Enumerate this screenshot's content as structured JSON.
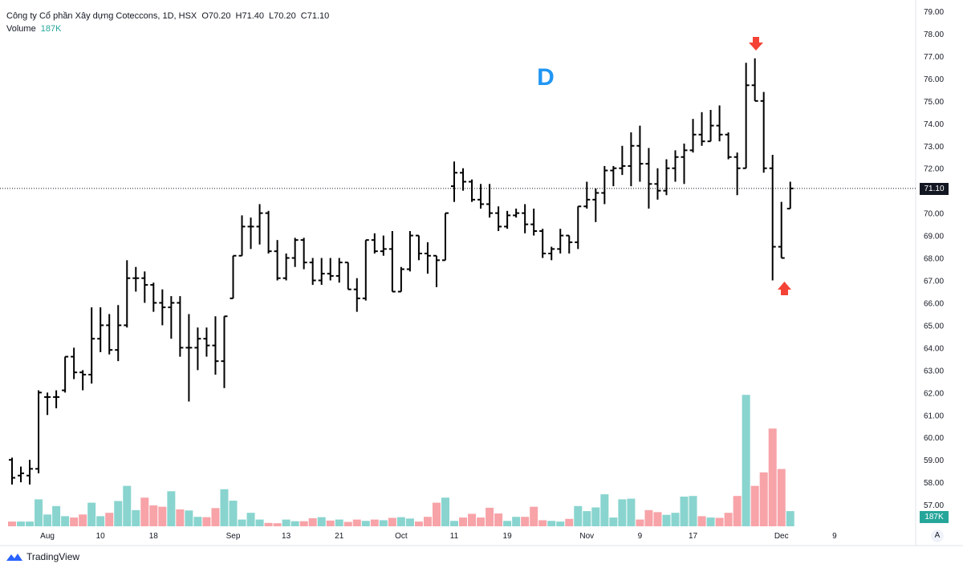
{
  "header": {
    "symbol": "Công ty Cổ phần Xây dựng Coteccons, 1D, HSX",
    "o_label": "O",
    "o_value": "70.20",
    "h_label": "H",
    "h_value": "71.40",
    "l_label": "L",
    "l_value": "70.20",
    "c_label": "C",
    "c_value": "71.10",
    "volume_label": "Volume",
    "volume_value": "187K"
  },
  "annotation": {
    "letter": "D",
    "color": "#2196f3",
    "arrow_color": "#f44336"
  },
  "branding": {
    "logo_text": "TradingView"
  },
  "axis_button": "A",
  "last_price_label": "71.10",
  "last_volume_label": "187K",
  "colors": {
    "bar": "#000000",
    "vol_up": "#89d4cf",
    "vol_down": "#f7a3a8",
    "vol_tag": "#26a69a",
    "price_tag": "#131722"
  },
  "chart_data": {
    "type": "ohlc",
    "title": "",
    "y_ticks": [
      "57.00",
      "58.00",
      "59.00",
      "60.00",
      "61.00",
      "62.00",
      "63.00",
      "64.00",
      "65.00",
      "66.00",
      "67.00",
      "68.00",
      "69.00",
      "70.00",
      "71.00",
      "72.00",
      "73.00",
      "74.00",
      "75.00",
      "76.00",
      "77.00",
      "78.00",
      "79.00"
    ],
    "ylim": [
      56.4,
      79.3
    ],
    "x_ticks": [
      {
        "label": "Aug",
        "bar": 4
      },
      {
        "label": "10",
        "bar": 10
      },
      {
        "label": "18",
        "bar": 16
      },
      {
        "label": "Sep",
        "bar": 25
      },
      {
        "label": "13",
        "bar": 31
      },
      {
        "label": "21",
        "bar": 37
      },
      {
        "label": "Oct",
        "bar": 44
      },
      {
        "label": "11",
        "bar": 50
      },
      {
        "label": "19",
        "bar": 56
      },
      {
        "label": "Nov",
        "bar": 65
      },
      {
        "label": "9",
        "bar": 71
      },
      {
        "label": "17",
        "bar": 77
      },
      {
        "label": "Dec",
        "bar": 87
      },
      {
        "label": "9",
        "bar": 93
      }
    ],
    "grid": false,
    "last_close_line": 71.1,
    "bars": [
      [
        59.0,
        59.1,
        57.9,
        58.2,
        14
      ],
      [
        58.3,
        58.7,
        58.0,
        58.4,
        14
      ],
      [
        58.3,
        59.0,
        57.9,
        58.6,
        14
      ],
      [
        58.6,
        62.1,
        58.4,
        62.0,
        80
      ],
      [
        61.8,
        62.0,
        61.0,
        61.8,
        35
      ],
      [
        61.8,
        62.1,
        61.3,
        61.8,
        60
      ],
      [
        62.1,
        63.6,
        62.0,
        63.6,
        30
      ],
      [
        63.6,
        64.0,
        62.6,
        62.9,
        26
      ],
      [
        62.9,
        63.0,
        62.1,
        62.8,
        35
      ],
      [
        62.8,
        65.8,
        62.4,
        64.4,
        70
      ],
      [
        64.4,
        65.8,
        63.8,
        65.0,
        30
      ],
      [
        65.0,
        65.5,
        63.7,
        63.9,
        40
      ],
      [
        63.9,
        65.9,
        63.4,
        65.0,
        75
      ],
      [
        65.0,
        67.9,
        64.9,
        67.1,
        120
      ],
      [
        67.1,
        67.6,
        66.5,
        67.1,
        48
      ],
      [
        67.1,
        67.4,
        66.0,
        66.8,
        85
      ],
      [
        66.8,
        66.9,
        65.6,
        66.0,
        62
      ],
      [
        66.0,
        66.6,
        65.0,
        65.8,
        58
      ],
      [
        65.8,
        66.3,
        64.4,
        66.0,
        104
      ],
      [
        66.0,
        66.3,
        63.6,
        64.0,
        50
      ],
      [
        64.0,
        65.5,
        61.6,
        64.0,
        47
      ],
      [
        64.0,
        64.9,
        63.0,
        64.4,
        28
      ],
      [
        64.4,
        64.9,
        63.6,
        64.1,
        27
      ],
      [
        64.1,
        65.4,
        62.8,
        63.4,
        54
      ],
      [
        63.4,
        65.4,
        62.2,
        65.4,
        110
      ],
      [
        66.2,
        68.1,
        66.2,
        68.1,
        76
      ],
      [
        68.1,
        69.9,
        68.1,
        69.4,
        20
      ],
      [
        69.4,
        69.8,
        68.4,
        69.4,
        40
      ],
      [
        69.4,
        70.4,
        68.6,
        70.0,
        20
      ],
      [
        70.0,
        70.1,
        68.2,
        68.3,
        10
      ],
      [
        68.3,
        68.8,
        67.0,
        67.1,
        9
      ],
      [
        67.1,
        68.2,
        67.0,
        68.0,
        20
      ],
      [
        68.0,
        68.9,
        67.6,
        68.8,
        15
      ],
      [
        68.8,
        68.9,
        67.5,
        67.8,
        15
      ],
      [
        67.8,
        68.0,
        66.8,
        67.0,
        24
      ],
      [
        67.0,
        68.0,
        66.8,
        67.3,
        27
      ],
      [
        67.3,
        68.0,
        67.0,
        67.2,
        17
      ],
      [
        67.2,
        68.0,
        66.9,
        67.8,
        20
      ],
      [
        67.8,
        67.8,
        66.6,
        66.6,
        13
      ],
      [
        66.6,
        67.1,
        65.6,
        66.2,
        20
      ],
      [
        66.2,
        68.8,
        66.1,
        68.8,
        16
      ],
      [
        68.8,
        69.1,
        68.2,
        68.3,
        20
      ],
      [
        68.3,
        69.0,
        68.1,
        68.4,
        18
      ],
      [
        68.4,
        69.2,
        66.5,
        66.5,
        25
      ],
      [
        66.5,
        67.6,
        66.5,
        67.5,
        27
      ],
      [
        67.5,
        69.2,
        67.4,
        69.0,
        23
      ],
      [
        69.0,
        69.0,
        67.9,
        68.2,
        14
      ],
      [
        68.2,
        68.7,
        67.3,
        68.1,
        28
      ],
      [
        68.1,
        68.1,
        66.7,
        67.9,
        70
      ],
      [
        67.9,
        70.0,
        67.9,
        70.0,
        85
      ],
      [
        71.2,
        72.3,
        70.5,
        71.8,
        16
      ],
      [
        71.8,
        72.0,
        71.0,
        71.4,
        26
      ],
      [
        71.4,
        71.5,
        70.5,
        70.6,
        37
      ],
      [
        70.6,
        71.3,
        70.2,
        70.4,
        26
      ],
      [
        70.4,
        71.3,
        69.8,
        70.0,
        55
      ],
      [
        70.0,
        70.3,
        69.2,
        69.4,
        38
      ],
      [
        69.4,
        70.1,
        69.3,
        69.9,
        16
      ],
      [
        69.9,
        70.2,
        69.8,
        70.0,
        28
      ],
      [
        70.0,
        70.4,
        69.1,
        69.5,
        28
      ],
      [
        69.5,
        70.2,
        69.0,
        69.2,
        58
      ],
      [
        69.2,
        69.3,
        68.0,
        68.2,
        18
      ],
      [
        68.2,
        68.5,
        67.9,
        68.4,
        16
      ],
      [
        68.4,
        69.3,
        68.2,
        69.0,
        14
      ],
      [
        69.0,
        69.0,
        68.2,
        68.7,
        22
      ],
      [
        68.7,
        70.3,
        68.4,
        70.3,
        60
      ],
      [
        70.3,
        71.4,
        70.2,
        70.6,
        45
      ],
      [
        70.6,
        71.1,
        69.6,
        70.9,
        56
      ],
      [
        70.9,
        72.1,
        70.4,
        71.9,
        95
      ],
      [
        71.9,
        72.1,
        71.2,
        72.0,
        26
      ],
      [
        72.0,
        73.0,
        71.7,
        72.1,
        80
      ],
      [
        72.1,
        73.6,
        71.2,
        73.0,
        82
      ],
      [
        73.0,
        73.9,
        71.4,
        72.2,
        20
      ],
      [
        72.2,
        72.9,
        70.2,
        71.3,
        48
      ],
      [
        71.3,
        72.0,
        70.6,
        71.0,
        42
      ],
      [
        71.0,
        72.4,
        70.8,
        72.0,
        34
      ],
      [
        72.0,
        72.8,
        71.4,
        72.5,
        40
      ],
      [
        72.5,
        73.1,
        71.3,
        72.8,
        88
      ],
      [
        72.8,
        74.2,
        72.7,
        73.5,
        90
      ],
      [
        73.5,
        74.5,
        73.0,
        73.2,
        30
      ],
      [
        73.2,
        74.6,
        73.2,
        73.9,
        26
      ],
      [
        73.9,
        74.8,
        73.2,
        73.5,
        25
      ],
      [
        73.5,
        73.6,
        72.4,
        72.5,
        40
      ],
      [
        72.5,
        72.7,
        70.8,
        72.0,
        90
      ],
      [
        72.0,
        76.7,
        72.0,
        75.7,
        390
      ],
      [
        75.7,
        76.9,
        75.0,
        75.0,
        120
      ],
      [
        75.0,
        75.4,
        71.8,
        72.0,
        160
      ],
      [
        72.0,
        72.6,
        67.0,
        68.5,
        290
      ],
      [
        68.5,
        70.5,
        68.0,
        68.0,
        170
      ],
      [
        70.2,
        71.4,
        70.2,
        71.1,
        45
      ]
    ]
  }
}
